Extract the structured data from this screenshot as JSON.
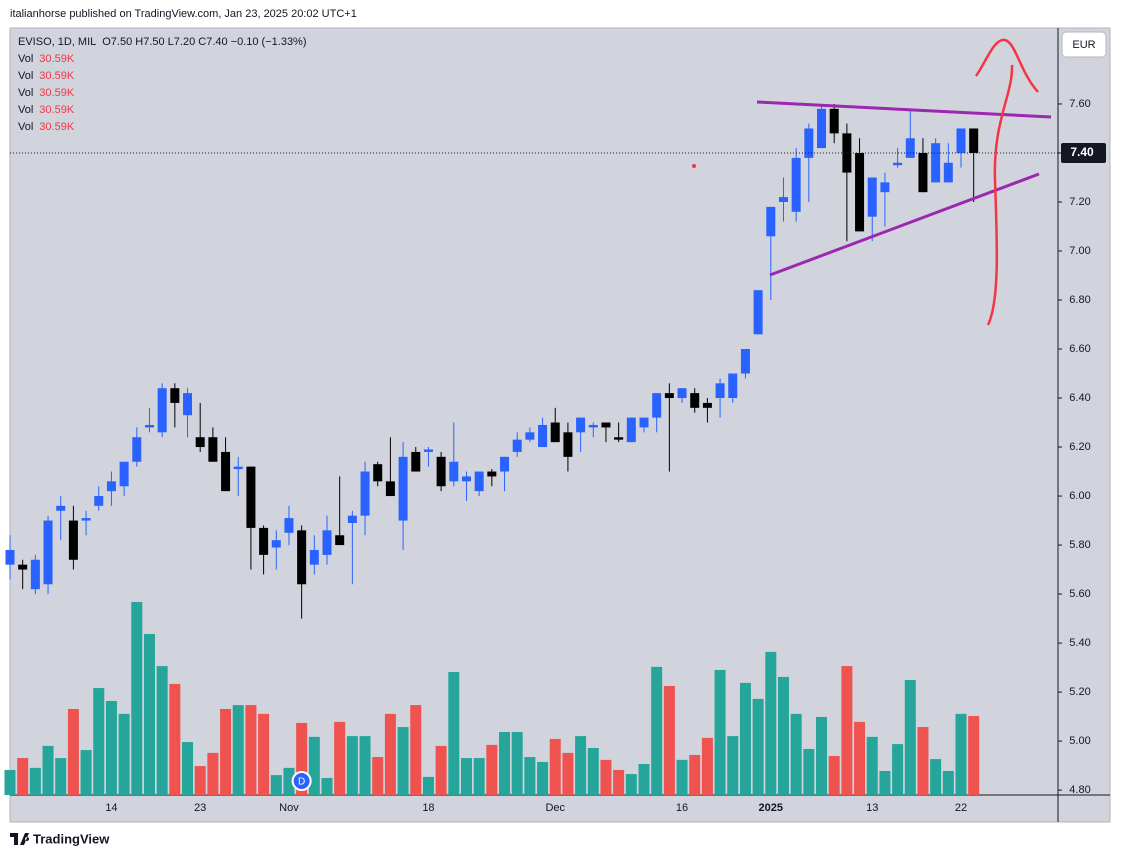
{
  "header": {
    "published": "italianhorse published on TradingView.com, Jan 23, 2025 20:02 UTC+1",
    "logo": "TradingView"
  },
  "chart_data": {
    "type": "candlestick",
    "symbol": "EVISO, 1D, MIL",
    "quote": "O7.50 H7.50 L7.20 C7.40 −0.10 (−1.33%)",
    "currency": "EUR",
    "dividend_marker": "D",
    "indicators": [
      {
        "name": "Vol",
        "value_label": "30.59K"
      },
      {
        "name": "Vol",
        "value_label": "30.59K"
      },
      {
        "name": "Vol",
        "value_label": "30.59K"
      },
      {
        "name": "Vol",
        "value_label": "30.59K"
      },
      {
        "name": "Vol",
        "value_label": "30.59K"
      }
    ],
    "up_color": "#2962ff",
    "down_color": "#000000",
    "categories": [
      null,
      null,
      null,
      null,
      null,
      null,
      null,
      null,
      "14",
      null,
      null,
      null,
      null,
      null,
      null,
      "23",
      null,
      null,
      null,
      null,
      null,
      null,
      "Nov",
      null,
      null,
      null,
      null,
      null,
      null,
      null,
      null,
      null,
      null,
      "18",
      null,
      null,
      null,
      null,
      null,
      null,
      null,
      null,
      null,
      "Dec",
      null,
      null,
      null,
      null,
      null,
      null,
      null,
      null,
      null,
      "16",
      null,
      null,
      null,
      null,
      null,
      null,
      "2025",
      null,
      null,
      null,
      null,
      null,
      null,
      null,
      "13",
      null,
      null,
      null,
      null,
      null,
      null,
      "22",
      null
    ],
    "open": [
      5.72,
      5.72,
      5.62,
      5.64,
      5.94,
      5.9,
      5.9,
      5.96,
      6.02,
      6.04,
      6.14,
      6.28,
      6.26,
      6.44,
      6.33,
      6.24,
      6.24,
      6.18,
      6.11,
      6.12,
      5.87,
      5.79,
      5.85,
      5.86,
      5.72,
      5.76,
      5.84,
      5.89,
      5.92,
      6.13,
      6.06,
      5.9,
      6.18,
      6.18,
      6.16,
      6.06,
      6.06,
      6.02,
      6.1,
      6.1,
      6.18,
      6.23,
      6.2,
      6.3,
      6.26,
      6.26,
      6.28,
      6.3,
      6.24,
      6.22,
      6.28,
      6.32,
      6.42,
      6.4,
      6.42,
      6.38,
      6.4,
      6.4,
      6.5,
      6.66,
      7.06,
      7.2,
      7.16,
      7.38,
      7.42,
      7.58,
      7.48,
      7.4,
      7.14,
      7.24,
      7.35,
      7.38,
      7.4,
      7.28,
      7.28,
      7.4,
      7.5
    ],
    "high": [
      5.84,
      5.74,
      5.76,
      5.92,
      6.0,
      5.96,
      5.94,
      6.04,
      6.1,
      6.14,
      6.28,
      6.36,
      6.46,
      6.46,
      6.44,
      6.38,
      6.28,
      6.24,
      6.16,
      6.12,
      5.88,
      5.86,
      5.96,
      5.88,
      5.84,
      5.92,
      6.08,
      5.94,
      6.14,
      6.14,
      6.24,
      6.22,
      6.2,
      6.2,
      6.18,
      6.3,
      6.1,
      6.1,
      6.11,
      6.16,
      6.26,
      6.28,
      6.32,
      6.36,
      6.3,
      6.32,
      6.3,
      6.3,
      6.3,
      6.32,
      6.32,
      6.42,
      6.46,
      6.44,
      6.44,
      6.4,
      6.48,
      6.5,
      6.6,
      6.84,
      7.18,
      7.3,
      7.42,
      7.52,
      7.6,
      7.6,
      7.52,
      7.46,
      7.3,
      7.32,
      7.42,
      7.58,
      7.46,
      7.46,
      7.44,
      7.5,
      7.5
    ],
    "low": [
      5.66,
      5.62,
      5.6,
      5.6,
      5.82,
      5.7,
      5.84,
      5.94,
      5.96,
      6.0,
      6.12,
      6.26,
      6.24,
      6.28,
      6.24,
      6.18,
      6.14,
      6.02,
      6.0,
      5.7,
      5.68,
      5.7,
      5.8,
      5.5,
      5.68,
      5.72,
      5.8,
      5.64,
      5.84,
      6.04,
      6.0,
      5.78,
      6.1,
      6.12,
      6.02,
      6.04,
      5.98,
      6.0,
      6.04,
      6.02,
      6.16,
      6.22,
      6.2,
      6.22,
      6.1,
      6.18,
      6.24,
      6.22,
      6.22,
      6.22,
      6.26,
      6.26,
      6.1,
      6.38,
      6.34,
      6.3,
      6.32,
      6.38,
      6.48,
      6.66,
      6.8,
      7.12,
      7.12,
      7.2,
      7.42,
      7.44,
      7.04,
      7.08,
      7.04,
      7.1,
      7.34,
      7.38,
      7.24,
      7.28,
      7.28,
      7.34,
      7.2
    ],
    "close": [
      5.78,
      5.7,
      5.74,
      5.9,
      5.96,
      5.74,
      5.91,
      6.0,
      6.06,
      6.14,
      6.24,
      6.29,
      6.44,
      6.38,
      6.42,
      6.2,
      6.14,
      6.02,
      6.12,
      5.87,
      5.76,
      5.82,
      5.91,
      5.64,
      5.78,
      5.86,
      5.8,
      5.92,
      6.1,
      6.06,
      6.0,
      6.16,
      6.1,
      6.19,
      6.04,
      6.14,
      6.08,
      6.1,
      6.08,
      6.16,
      6.23,
      6.26,
      6.29,
      6.22,
      6.16,
      6.32,
      6.29,
      6.28,
      6.23,
      6.32,
      6.32,
      6.42,
      6.4,
      6.44,
      6.36,
      6.36,
      6.46,
      6.5,
      6.6,
      6.84,
      7.18,
      7.22,
      7.38,
      7.5,
      7.58,
      7.48,
      7.32,
      7.08,
      7.3,
      7.28,
      7.36,
      7.46,
      7.24,
      7.44,
      7.36,
      7.5,
      7.4
    ],
    "volume": {
      "up_color": "#26a69a",
      "down_color": "#ef5350",
      "values": [
        9.7,
        14.3,
        10.5,
        19.0,
        14.3,
        33.3,
        17.4,
        41.4,
        36.4,
        31.4,
        74.7,
        62.3,
        49.9,
        43.0,
        20.5,
        11.2,
        16.3,
        33.3,
        34.8,
        34.8,
        31.4,
        7.7,
        10.5,
        27.9,
        22.5,
        6.6,
        28.3,
        22.8,
        22.8,
        14.7,
        31.4,
        26.3,
        34.8,
        7.0,
        19.0,
        47.6,
        14.3,
        14.3,
        19.4,
        24.4,
        24.4,
        14.7,
        12.8,
        21.7,
        16.3,
        22.8,
        18.2,
        13.6,
        9.7,
        8.1,
        12.0,
        49.6,
        42.2,
        13.6,
        15.5,
        22.1,
        48.4,
        22.8,
        43.4,
        37.2,
        55.4,
        45.7,
        31.4,
        17.8,
        30.2,
        15.1,
        49.9,
        28.3,
        22.5,
        9.3,
        19.7,
        44.5,
        26.3,
        13.9,
        9.3,
        31.4,
        30.59
      ]
    },
    "last_price": {
      "value": 7.4,
      "label": "7.40"
    },
    "ylim": [
      4.78,
      7.91
    ],
    "yticks": [
      {
        "value": 4.8,
        "label": "4.80"
      },
      {
        "value": 5.0,
        "label": "5.00"
      },
      {
        "value": 5.2,
        "label": "5.20"
      },
      {
        "value": 5.4,
        "label": "5.40"
      },
      {
        "value": 5.6,
        "label": "5.60"
      },
      {
        "value": 5.8,
        "label": "5.80"
      },
      {
        "value": 6.0,
        "label": "6.00"
      },
      {
        "value": 6.2,
        "label": "6.20"
      },
      {
        "value": 6.4,
        "label": "6.40"
      },
      {
        "value": 6.6,
        "label": "6.60"
      },
      {
        "value": 6.8,
        "label": "6.80"
      },
      {
        "value": 7.0,
        "label": "7.00"
      },
      {
        "value": 7.2,
        "label": "7.20"
      },
      {
        "value": 7.4,
        "label": "7.40"
      },
      {
        "value": 7.6,
        "label": "7.60"
      }
    ],
    "grid": false
  }
}
